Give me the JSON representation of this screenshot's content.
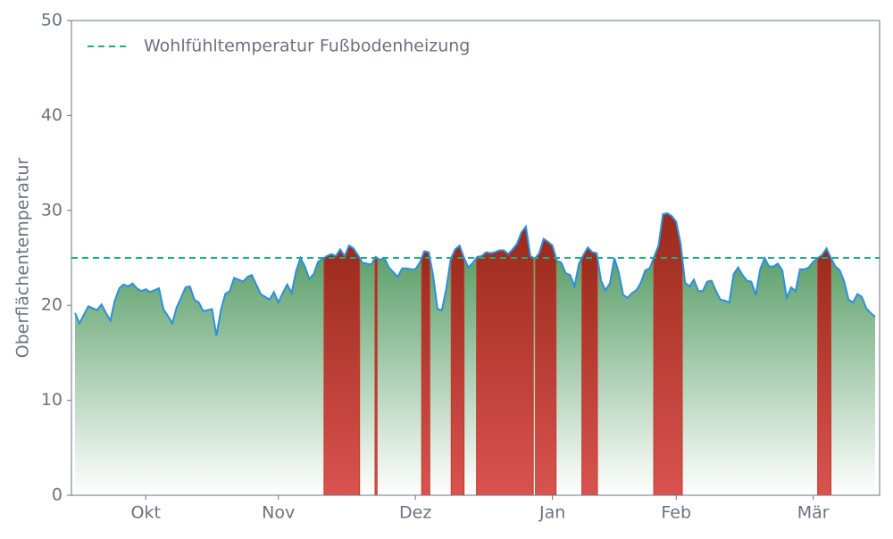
{
  "chart_data": {
    "type": "area",
    "y_label": "Oberflächentemperatur",
    "ylim": [
      0,
      50
    ],
    "yticks": [
      0,
      10,
      20,
      30,
      40,
      50
    ],
    "reference_line": {
      "value": 25,
      "label": "Wohlfühltemperatur Fußbodenheizung",
      "color": "#1aaf80"
    },
    "line_color": "#2b8fe0",
    "below_color": "#3f8f4f",
    "above_color": "#9b2a1c",
    "categories": [
      null,
      null,
      null,
      null,
      null,
      null,
      null,
      null,
      null,
      null,
      null,
      null,
      null,
      null,
      null,
      null,
      "Okt",
      null,
      null,
      null,
      null,
      null,
      null,
      null,
      null,
      null,
      null,
      null,
      null,
      null,
      null,
      null,
      null,
      null,
      null,
      null,
      null,
      null,
      null,
      null,
      null,
      null,
      null,
      null,
      null,
      null,
      "Nov",
      null,
      null,
      null,
      null,
      null,
      null,
      null,
      null,
      null,
      null,
      null,
      null,
      null,
      null,
      null,
      null,
      null,
      null,
      null,
      null,
      null,
      null,
      null,
      null,
      null,
      null,
      null,
      null,
      null,
      null,
      "Dez",
      null,
      null,
      null,
      null,
      null,
      null,
      null,
      null,
      null,
      null,
      null,
      null,
      null,
      null,
      null,
      null,
      null,
      null,
      null,
      null,
      null,
      null,
      null,
      null,
      null,
      null,
      null,
      null,
      null,
      null,
      "Jan",
      null,
      null,
      null,
      null,
      null,
      null,
      null,
      null,
      null,
      null,
      null,
      null,
      null,
      null,
      null,
      null,
      null,
      null,
      null,
      null,
      null,
      null,
      null,
      null,
      null,
      null,
      null,
      "Feb",
      null,
      null,
      null,
      null,
      null,
      null,
      null,
      null,
      null,
      null,
      null,
      null,
      null,
      null,
      null,
      null,
      null,
      null,
      null,
      null,
      null,
      null,
      null,
      null,
      null,
      null,
      null,
      null,
      null,
      null,
      "Mär",
      null,
      null,
      null,
      null,
      null,
      null,
      null,
      null,
      null,
      null,
      null,
      null,
      null,
      null
    ],
    "values": [
      19.2,
      18.1,
      19.0,
      19.9,
      19.7,
      19.5,
      20.1,
      19.2,
      18.4,
      20.5,
      21.8,
      22.2,
      22.0,
      22.3,
      21.8,
      21.5,
      21.7,
      21.4,
      21.6,
      21.8,
      19.6,
      18.9,
      18.1,
      19.8,
      20.8,
      21.9,
      22.0,
      20.6,
      20.3,
      19.4,
      19.5,
      19.6,
      16.8,
      19.5,
      21.2,
      21.5,
      22.9,
      22.7,
      22.5,
      23.0,
      23.2,
      22.2,
      21.2,
      20.9,
      20.6,
      21.4,
      20.3,
      21.3,
      22.2,
      21.3,
      23.6,
      25.0,
      24.1,
      22.8,
      23.3,
      24.6,
      24.9,
      25.2,
      25.4,
      25.2,
      25.9,
      25.2,
      26.3,
      26.0,
      25.3,
      24.5,
      24.4,
      24.3,
      25.1,
      24.8,
      25.0,
      24.0,
      23.5,
      23.0,
      23.9,
      23.9,
      23.8,
      23.8,
      24.5,
      25.7,
      25.6,
      23.2,
      19.6,
      19.5,
      21.8,
      24.9,
      25.9,
      26.3,
      25.0,
      24.0,
      24.5,
      25.1,
      25.2,
      25.6,
      25.5,
      25.6,
      25.8,
      25.8,
      25.4,
      25.9,
      26.5,
      27.7,
      28.3,
      25.2,
      24.9,
      25.5,
      27.0,
      26.7,
      26.3,
      24.7,
      24.5,
      23.4,
      23.2,
      22.0,
      24.4,
      25.3,
      26.1,
      25.6,
      25.5,
      22.6,
      21.6,
      22.3,
      25.0,
      23.5,
      21.1,
      20.8,
      21.3,
      21.6,
      22.4,
      23.7,
      23.9,
      25.1,
      26.3,
      29.6,
      29.7,
      29.4,
      28.8,
      26.5,
      22.4,
      22.0,
      22.7,
      21.5,
      21.5,
      22.5,
      22.6,
      21.5,
      20.6,
      20.5,
      20.3,
      23.3,
      24.0,
      23.2,
      22.6,
      22.5,
      21.1,
      23.8,
      25.0,
      24.1,
      24.1,
      24.4,
      23.7,
      20.8,
      21.9,
      21.5,
      23.8,
      23.8,
      24.0,
      24.6,
      25.0,
      25.3,
      26.0,
      25.0,
      24.1,
      23.7,
      22.5,
      20.6,
      20.3,
      21.2,
      20.9,
      19.7,
      19.2,
      18.8
    ]
  }
}
